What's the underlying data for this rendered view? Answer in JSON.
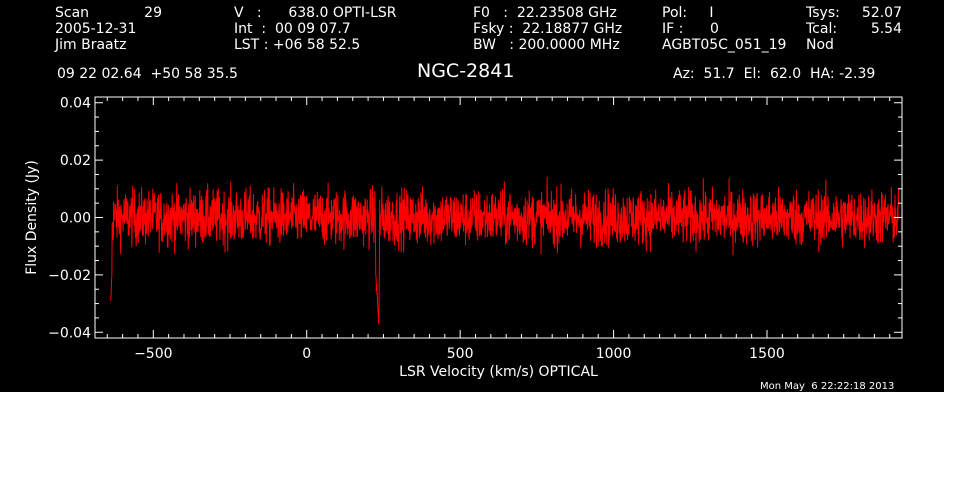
{
  "header": {
    "scan_label": "Scan",
    "scan_value": "29",
    "date": "2005-12-31",
    "observer": "Jim Braatz",
    "v_line": "V   :      638.0 OPTI-LSR",
    "int_line": "Int  :  00 09 07.7",
    "lst_line": "LST : +06 58 52.5",
    "f0_line": "F0   :  22.23508 GHz",
    "fsky_line": "Fsky :  22.18877 GHz",
    "bw_line": "BW   : 200.0000 MHz",
    "pol_line": "Pol:     I",
    "if_line": "IF :      0",
    "project": "AGBT05C_051_19",
    "tsys_label": "Tsys:",
    "tsys_value": "52.07",
    "tcal_label": "Tcal:",
    "tcal_value": "5.54",
    "nod": "Nod",
    "coords": "09 22 02.64  +50 58 35.5",
    "source": "NGC-2841",
    "az_el_ha": "Az:  51.7  El:  62.0  HA: -2.39"
  },
  "timestamp": "Mon May  6 22:22:18 2013",
  "colors": {
    "background": "#000000",
    "foreground": "#ffffff",
    "trace": "#ff0000"
  },
  "chart_data": {
    "type": "line",
    "title": "NGC-2841",
    "xlabel": "LSR Velocity (km/s) OPTICAL",
    "ylabel": "Flux Density (Jy)",
    "xlim": [
      -690,
      1940
    ],
    "ylim": [
      -0.042,
      0.042
    ],
    "x_ticks": [
      -500,
      0,
      500,
      1000,
      1500
    ],
    "x_tick_labels": [
      "−500",
      "0",
      "500",
      "1000",
      "1500"
    ],
    "y_ticks": [
      -0.04,
      -0.02,
      0.0,
      0.02,
      0.04
    ],
    "y_tick_labels": [
      "−0.04",
      "−0.02",
      "0.00",
      "0.02",
      "0.04"
    ],
    "grid": false,
    "series": [
      {
        "x_range": [
          -640,
          1930
        ],
        "noise_rms_jy": 0.007,
        "baseline_jy": 0.0,
        "x": [
          -640,
          -630,
          -620,
          -600,
          -580,
          -560,
          -540,
          -520,
          -500,
          -480,
          -460,
          -440,
          -420,
          -400,
          -380,
          -360,
          -340,
          -320,
          -300,
          -280,
          -260,
          -240,
          -220,
          -200,
          -180,
          -160,
          -140,
          -120,
          -100,
          -80,
          -60,
          -40,
          -20,
          0,
          20,
          40,
          60,
          80,
          100,
          120,
          140,
          160,
          180,
          200,
          220,
          235,
          240,
          260,
          280,
          300,
          320,
          340,
          360,
          380,
          400,
          420,
          440,
          460,
          480,
          500,
          520,
          540,
          560,
          580,
          600,
          620,
          640,
          660,
          680,
          700,
          720,
          740,
          760,
          780,
          800,
          820,
          840,
          860,
          880,
          900,
          920,
          940,
          960,
          980,
          1000,
          1020,
          1040,
          1060,
          1080,
          1100,
          1120,
          1140,
          1160,
          1180,
          1200,
          1220,
          1240,
          1260,
          1280,
          1300,
          1320,
          1340,
          1360,
          1380,
          1400,
          1420,
          1440,
          1460,
          1480,
          1500,
          1520,
          1540,
          1560,
          1580,
          1600,
          1620,
          1640,
          1660,
          1680,
          1700,
          1720,
          1740,
          1760,
          1780,
          1800,
          1820,
          1840,
          1860,
          1880,
          1900,
          1920,
          1930
        ],
        "y": [
          -0.03,
          -0.012,
          -0.02,
          0.004,
          -0.008,
          0.019,
          -0.01,
          0.012,
          -0.006,
          0.014,
          -0.012,
          0.011,
          -0.005,
          0.015,
          -0.009,
          0.01,
          -0.014,
          0.012,
          -0.006,
          0.016,
          -0.011,
          0.009,
          -0.015,
          0.013,
          -0.007,
          0.012,
          -0.012,
          0.016,
          -0.008,
          0.013,
          -0.01,
          0.014,
          -0.012,
          0.011,
          -0.009,
          0.015,
          -0.011,
          0.012,
          -0.008,
          0.013,
          -0.013,
          0.011,
          -0.006,
          0.014,
          -0.012,
          -0.037,
          0.01,
          -0.01,
          0.016,
          -0.011,
          0.013,
          -0.012,
          0.015,
          -0.009,
          0.012,
          -0.011,
          0.014,
          -0.01,
          0.012,
          -0.013,
          0.013,
          -0.008,
          0.015,
          -0.012,
          0.011,
          -0.01,
          0.014,
          -0.017,
          0.012,
          -0.009,
          0.016,
          -0.012,
          0.013,
          -0.01,
          0.012,
          -0.013,
          0.014,
          -0.009,
          0.011,
          -0.012,
          0.016,
          -0.01,
          0.012,
          -0.011,
          0.013,
          -0.012,
          0.015,
          -0.009,
          0.012,
          -0.014,
          0.013,
          -0.008,
          0.014,
          -0.011,
          0.012,
          -0.013,
          0.016,
          -0.009,
          0.013,
          -0.011,
          0.015,
          -0.012,
          0.012,
          -0.01,
          0.014,
          -0.013,
          0.013,
          -0.009,
          0.016,
          -0.011,
          0.012,
          -0.012,
          0.015,
          -0.01,
          0.013,
          -0.012,
          0.014,
          -0.011,
          0.016,
          -0.013,
          0.012,
          -0.01,
          0.015,
          -0.012,
          0.014,
          -0.011,
          0.013,
          -0.009,
          0.015,
          -0.012,
          0.018,
          0.002
        ]
      }
    ]
  }
}
